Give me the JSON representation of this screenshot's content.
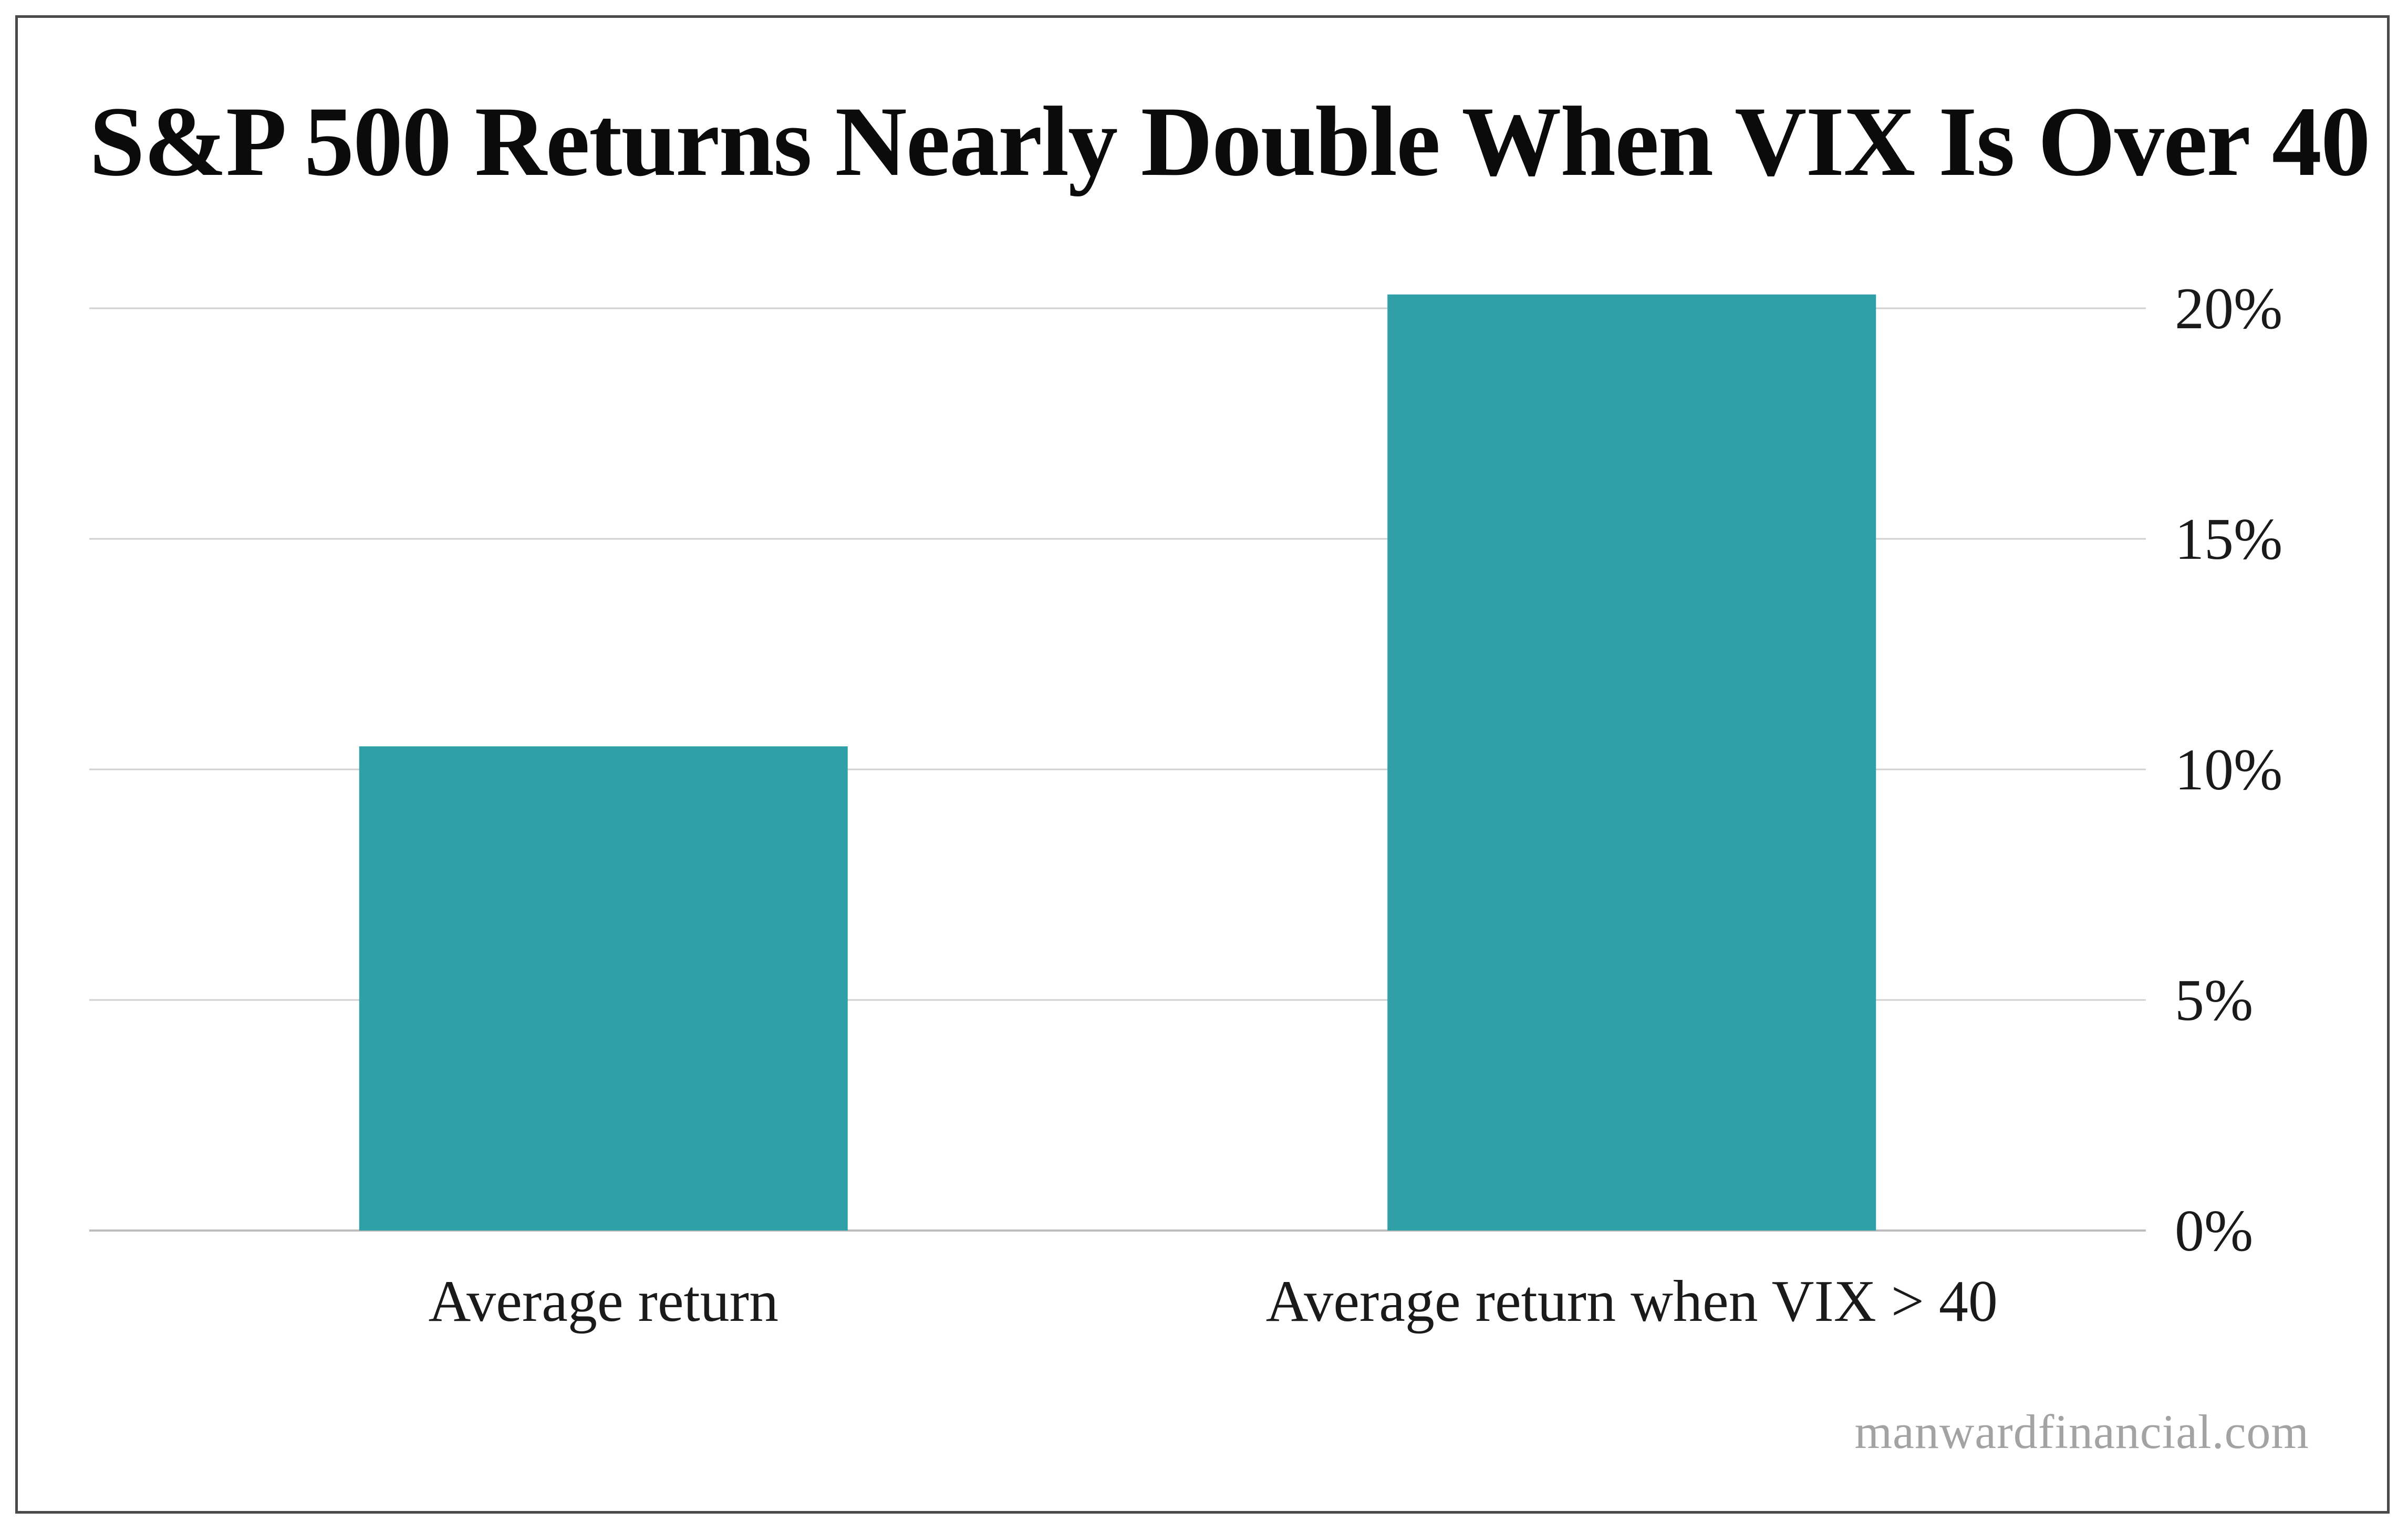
{
  "chart_data": {
    "type": "bar",
    "title": "S&P 500 Returns Nearly Double When VIX Is Over 40",
    "categories": [
      "Average return",
      "Average return when VIX > 40"
    ],
    "values": [
      10.5,
      20.3
    ],
    "ylim": [
      0,
      20
    ],
    "yticks": [
      0,
      5,
      10,
      15,
      20
    ],
    "ytick_labels": [
      "0%",
      "5%",
      "10%",
      "15%",
      "20%"
    ],
    "yaxis_position": "right",
    "grid": true,
    "legend": "none",
    "bar_color": "#2fa0a8"
  },
  "source": "manwardfinancial.com"
}
